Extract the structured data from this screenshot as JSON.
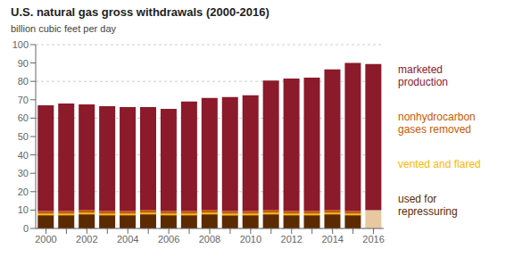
{
  "chart_data": {
    "type": "bar",
    "title": "U.S. natural gas gross withdrawals (2000-2016)",
    "ylabel": "billion cubic feet per day",
    "stacked": true,
    "grid": true,
    "legend": "right",
    "categories": [
      "2000",
      null,
      "2002",
      null,
      "2004",
      null,
      "2006",
      null,
      "2008",
      null,
      "2010",
      null,
      "2012",
      null,
      "2014",
      null,
      "2016"
    ],
    "series": [
      {
        "name": "used for\nrepressuring",
        "color": "#5C2A00",
        "colors": [
          "#5C2A00",
          "#5C2A00",
          "#5C2A00",
          "#5C2A00",
          "#5C2A00",
          "#5C2A00",
          "#5C2A00",
          "#5C2A00",
          "#5C2A00",
          "#5C2A00",
          "#5C2A00",
          "#5C2A00",
          "#5C2A00",
          "#5C2A00",
          "#5C2A00",
          "#5C2A00",
          "#E8C8A0"
        ],
        "values": [
          7.2,
          7.2,
          7.7,
          7.2,
          7.2,
          7.7,
          7.2,
          7.2,
          7.7,
          7.2,
          7.2,
          7.7,
          7.2,
          7.2,
          7.7,
          7.2,
          10.0
        ]
      },
      {
        "name": "vented and flared",
        "color": "#FFB800",
        "values": [
          0.8,
          0.8,
          0.8,
          0.8,
          0.8,
          0.8,
          0.8,
          0.8,
          0.8,
          0.8,
          0.8,
          0.8,
          0.8,
          0.8,
          0.8,
          0.8,
          0.0
        ]
      },
      {
        "name": "nonhydrocarbon\ngases removed",
        "color": "#C85A00",
        "values": [
          1.5,
          1.5,
          1.5,
          1.5,
          1.5,
          1.5,
          1.5,
          1.5,
          1.5,
          1.5,
          1.5,
          1.5,
          1.5,
          1.5,
          1.5,
          1.5,
          0.0
        ]
      },
      {
        "name": "marketed\nproduction",
        "color": "#8B1A2A",
        "values": [
          57.5,
          58.5,
          57.5,
          57.0,
          56.5,
          56.0,
          55.5,
          59.5,
          61.0,
          62.0,
          63.0,
          70.5,
          72.0,
          72.5,
          76.5,
          80.5,
          79.5
        ]
      }
    ],
    "ylim": [
      0,
      100
    ],
    "yticks": [
      0,
      10,
      20,
      30,
      40,
      50,
      60,
      70,
      80,
      90,
      100
    ]
  }
}
